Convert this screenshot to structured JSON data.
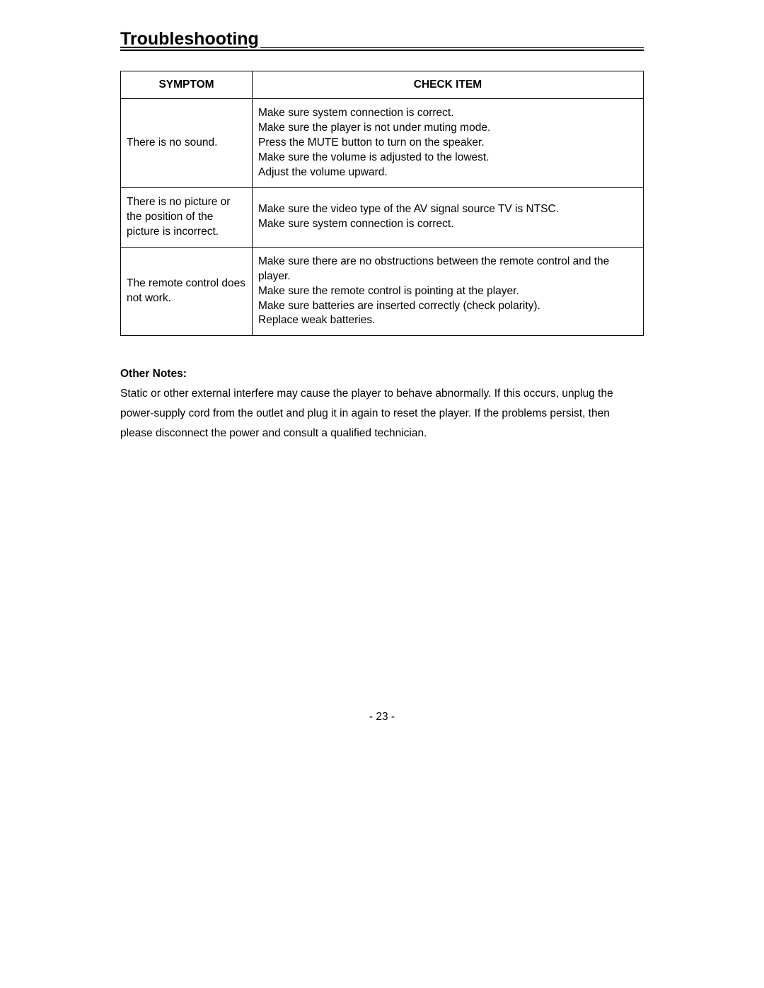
{
  "title": "Troubleshooting",
  "table": {
    "headers": {
      "symptom": "SYMPTOM",
      "check": "CHECK ITEM"
    },
    "rows": [
      {
        "symptom": "There is no sound.",
        "checks": [
          "Make sure system connection is correct.",
          "Make sure the player is not under muting mode.",
          "Press the MUTE button to turn on the speaker.",
          "Make sure the volume is adjusted to the lowest.",
          "Adjust the volume upward."
        ]
      },
      {
        "symptom": "There is no picture or the position of the picture is incorrect.",
        "checks": [
          "Make sure the video type of the AV signal source TV is NTSC.",
          "Make sure system connection is correct."
        ]
      },
      {
        "symptom": "The remote control does not work.",
        "checks": [
          "Make sure there are no obstructions between the remote control and the player.",
          "Make sure the remote control is pointing at the player.",
          "Make sure batteries are inserted correctly (check polarity).",
          "Replace weak batteries."
        ]
      }
    ]
  },
  "notes": {
    "label": "Other Notes:",
    "body": "Static or other external interfere may cause the player to behave abnormally. If this occurs, unplug the power-supply cord from the outlet and plug it in again to reset the player. If the problems persist, then please disconnect the power and consult a qualified technician."
  },
  "page_number": "- 23 -"
}
